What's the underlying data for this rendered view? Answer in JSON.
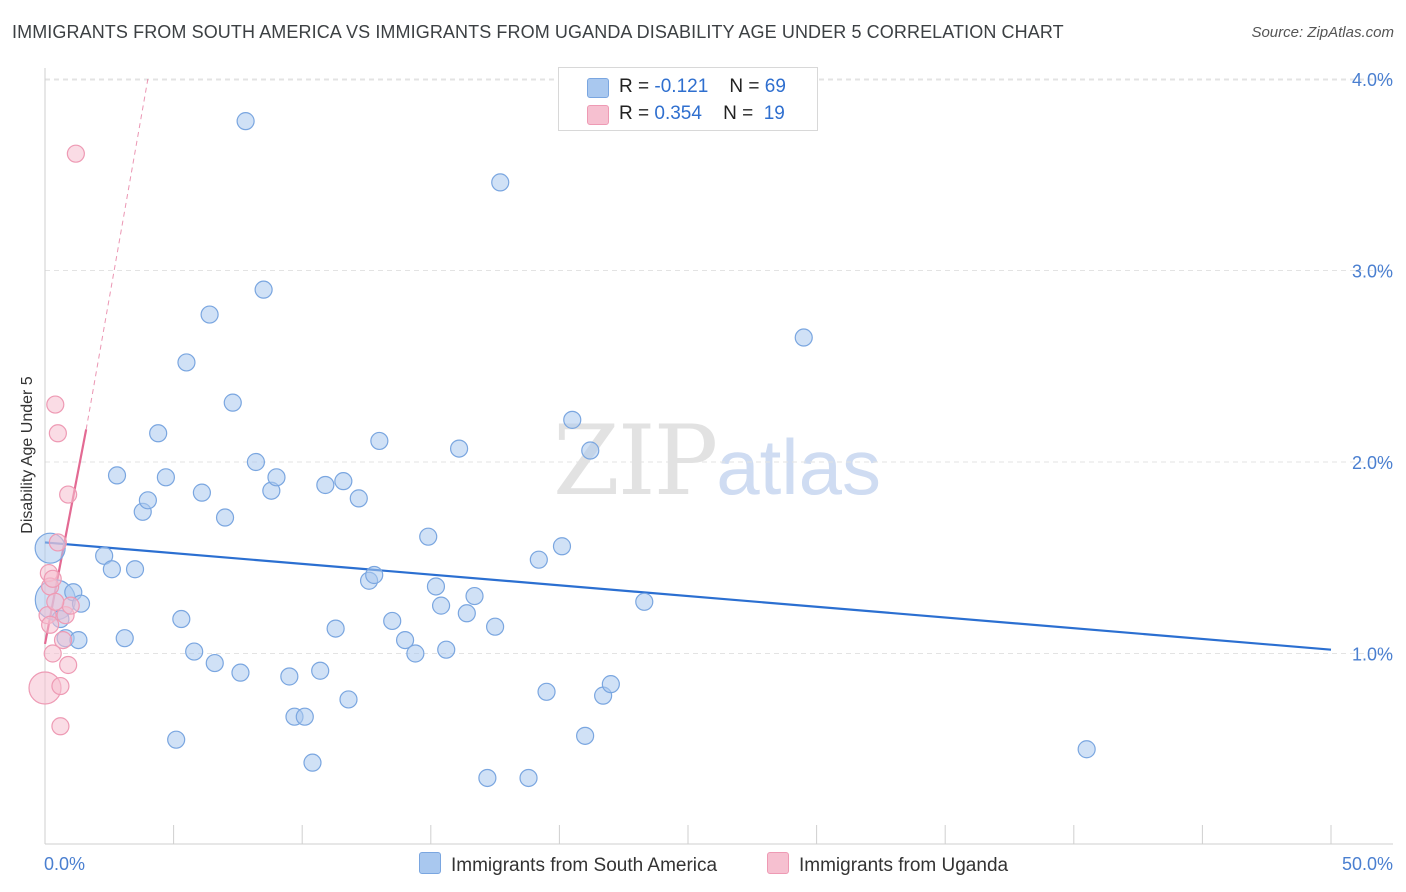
{
  "title": "IMMIGRANTS FROM SOUTH AMERICA VS IMMIGRANTS FROM UGANDA DISABILITY AGE UNDER 5 CORRELATION CHART",
  "source": "Source: ZipAtlas.com",
  "watermark": {
    "zip": "ZIP",
    "atlas": "atlas"
  },
  "legend": {
    "r_label": "R =",
    "n_label": "N =",
    "rows": [
      {
        "r": "-0.121",
        "n": "69"
      },
      {
        "r": "0.354",
        "n": "19"
      }
    ]
  },
  "colors": {
    "south_america": "#a9c8ef",
    "south_america_stroke": "#7aa6e0",
    "south_america_line": "#2b6fd1",
    "uganda": "#f6c0d0",
    "uganda_stroke": "#ee9ab4",
    "uganda_line": "#e36a93",
    "tick_text": "#4a7fd0"
  },
  "chart_data": {
    "type": "scatter",
    "title": "IMMIGRANTS FROM SOUTH AMERICA VS IMMIGRANTS FROM UGANDA DISABILITY AGE UNDER 5 CORRELATION CHART",
    "xlabel": "",
    "ylabel": "Disability Age Under 5",
    "xlim": [
      0,
      50
    ],
    "ylim": [
      0.0,
      4.2
    ],
    "x_tick_labels": [
      "0.0%",
      "50.0%"
    ],
    "y_ticks": [
      1.0,
      2.0,
      3.0,
      4.0
    ],
    "y_tick_labels": [
      "1.0%",
      "2.0%",
      "3.0%",
      "4.0%"
    ],
    "grid": true,
    "legend_position": "top-center",
    "series": [
      {
        "name": "Immigrants from South America",
        "points": [
          [
            0.2,
            1.55
          ],
          [
            0.4,
            1.28
          ],
          [
            0.6,
            1.18
          ],
          [
            0.8,
            1.08
          ],
          [
            1.1,
            1.32
          ],
          [
            1.3,
            1.07
          ],
          [
            1.4,
            1.26
          ],
          [
            2.3,
            1.51
          ],
          [
            2.6,
            1.44
          ],
          [
            2.8,
            1.93
          ],
          [
            3.1,
            1.08
          ],
          [
            3.5,
            1.44
          ],
          [
            3.8,
            1.74
          ],
          [
            4.0,
            1.8
          ],
          [
            4.4,
            2.15
          ],
          [
            4.7,
            1.92
          ],
          [
            5.1,
            0.55
          ],
          [
            5.3,
            1.18
          ],
          [
            5.5,
            2.52
          ],
          [
            5.8,
            1.01
          ],
          [
            6.1,
            1.84
          ],
          [
            6.4,
            2.77
          ],
          [
            6.6,
            0.95
          ],
          [
            7.0,
            1.71
          ],
          [
            7.3,
            2.31
          ],
          [
            7.6,
            0.9
          ],
          [
            7.8,
            3.78
          ],
          [
            8.2,
            2.0
          ],
          [
            8.5,
            2.9
          ],
          [
            8.8,
            1.85
          ],
          [
            9.0,
            1.92
          ],
          [
            9.5,
            0.88
          ],
          [
            9.7,
            0.67
          ],
          [
            10.1,
            0.67
          ],
          [
            10.4,
            0.43
          ],
          [
            10.7,
            0.91
          ],
          [
            10.9,
            1.88
          ],
          [
            11.3,
            1.13
          ],
          [
            11.6,
            1.9
          ],
          [
            11.8,
            0.76
          ],
          [
            12.2,
            1.81
          ],
          [
            12.6,
            1.38
          ],
          [
            12.8,
            1.41
          ],
          [
            13.0,
            2.11
          ],
          [
            13.5,
            1.17
          ],
          [
            14.0,
            1.07
          ],
          [
            14.4,
            1.0
          ],
          [
            14.9,
            1.61
          ],
          [
            15.2,
            1.35
          ],
          [
            15.4,
            1.25
          ],
          [
            15.6,
            1.02
          ],
          [
            16.1,
            2.07
          ],
          [
            16.4,
            1.21
          ],
          [
            16.7,
            1.3
          ],
          [
            17.2,
            0.35
          ],
          [
            17.5,
            1.14
          ],
          [
            17.7,
            3.46
          ],
          [
            18.8,
            0.35
          ],
          [
            19.2,
            1.49
          ],
          [
            19.5,
            0.8
          ],
          [
            20.1,
            1.56
          ],
          [
            20.5,
            2.22
          ],
          [
            21.0,
            0.57
          ],
          [
            21.2,
            2.06
          ],
          [
            21.7,
            0.78
          ],
          [
            22.0,
            0.84
          ],
          [
            23.3,
            1.27
          ],
          [
            29.5,
            2.65
          ],
          [
            40.5,
            0.5
          ]
        ],
        "trend": {
          "x": [
            0,
            50
          ],
          "y": [
            1.58,
            1.02
          ]
        }
      },
      {
        "name": "Immigrants from Uganda",
        "points": [
          [
            0.0,
            0.82
          ],
          [
            0.1,
            1.2
          ],
          [
            0.15,
            1.42
          ],
          [
            0.2,
            1.35
          ],
          [
            0.3,
            1.39
          ],
          [
            0.3,
            1.0
          ],
          [
            0.4,
            2.3
          ],
          [
            0.5,
            2.15
          ],
          [
            0.5,
            1.58
          ],
          [
            0.6,
            0.83
          ],
          [
            0.6,
            0.62
          ],
          [
            0.7,
            1.07
          ],
          [
            0.8,
            1.2
          ],
          [
            0.9,
            1.83
          ],
          [
            0.9,
            0.94
          ],
          [
            1.0,
            1.25
          ],
          [
            1.2,
            3.61
          ],
          [
            0.4,
            1.27
          ],
          [
            0.2,
            1.15
          ]
        ],
        "trend": {
          "x": [
            0,
            1.6
          ],
          "y": [
            1.05,
            2.17
          ]
        },
        "trend_extended": {
          "x": [
            1.6,
            4.0
          ],
          "y": [
            2.17,
            4.0
          ]
        }
      }
    ]
  },
  "bottom_legend": {
    "south_america": "Immigrants from South America",
    "uganda": "Immigrants from Uganda"
  }
}
